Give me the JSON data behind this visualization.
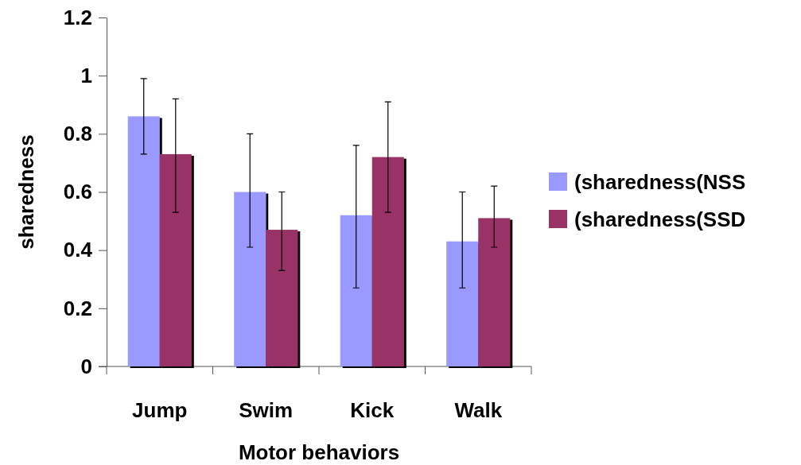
{
  "chart_data": {
    "type": "bar",
    "xlabel": "Motor behaviors",
    "ylabel": "sharedness",
    "categories": [
      "Jump",
      "Swim",
      "Kick",
      "Walk"
    ],
    "series": [
      {
        "name": "(sharedness(NSS",
        "color": "#9999ff",
        "values": [
          0.86,
          0.6,
          0.52,
          0.43
        ],
        "errors": [
          [
            0.73,
            0.99
          ],
          [
            0.41,
            0.8
          ],
          [
            0.27,
            0.76
          ],
          [
            0.27,
            0.6
          ]
        ]
      },
      {
        "name": "(sharedness(SSD",
        "color": "#993366",
        "values": [
          0.73,
          0.47,
          0.72,
          0.51
        ],
        "errors": [
          [
            0.53,
            0.92
          ],
          [
            0.33,
            0.6
          ],
          [
            0.53,
            0.91
          ],
          [
            0.41,
            0.62
          ]
        ]
      }
    ],
    "ylim": [
      0,
      1.2
    ],
    "yticks": [
      0,
      0.2,
      0.4,
      0.6,
      0.8,
      1,
      1.2
    ],
    "grid": false,
    "legend": "right"
  }
}
